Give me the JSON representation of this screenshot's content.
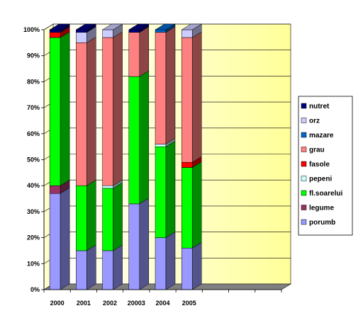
{
  "chart_data": {
    "type": "bar",
    "stacked": "percent",
    "three_d": true,
    "categories": [
      "2000",
      "2001",
      "2002",
      "20003",
      "2004",
      "2005"
    ],
    "extra_empty_slots": 3,
    "ylim": [
      0,
      100
    ],
    "yticks": [
      "0%",
      "10%",
      "20%",
      "30%",
      "40%",
      "50%",
      "60%",
      "70%",
      "80%",
      "90%",
      "100%"
    ],
    "grid": true,
    "legend_position": "right",
    "series": [
      {
        "name": "porumb",
        "color": "#9999ff",
        "values": [
          37,
          15,
          15,
          33,
          20,
          16
        ]
      },
      {
        "name": "legume",
        "color": "#993366",
        "values": [
          3,
          0,
          0,
          0,
          0,
          0
        ]
      },
      {
        "name": "fl.soarelui",
        "color": "#00ff00",
        "values": [
          57,
          25,
          24,
          49,
          35,
          31
        ]
      },
      {
        "name": "pepeni",
        "color": "#ccffff",
        "values": [
          0,
          0,
          1,
          0,
          1,
          0
        ]
      },
      {
        "name": "fasole",
        "color": "#ff0000",
        "values": [
          2,
          0,
          0,
          0,
          0,
          2
        ]
      },
      {
        "name": "grau",
        "color": "#ff8080",
        "values": [
          0,
          55,
          57,
          17,
          43,
          48
        ]
      },
      {
        "name": "mazare",
        "color": "#0066cc",
        "values": [
          0,
          0,
          0,
          0,
          1,
          0
        ]
      },
      {
        "name": "orz",
        "color": "#ccccff",
        "values": [
          0,
          4,
          3,
          0,
          0,
          3
        ]
      },
      {
        "name": "nutret",
        "color": "#000080",
        "values": [
          1,
          1,
          0,
          1,
          0,
          0
        ]
      }
    ],
    "plot_area_gradient": [
      "#ffffff",
      "#ffff99"
    ],
    "floor_color": "#808080"
  }
}
